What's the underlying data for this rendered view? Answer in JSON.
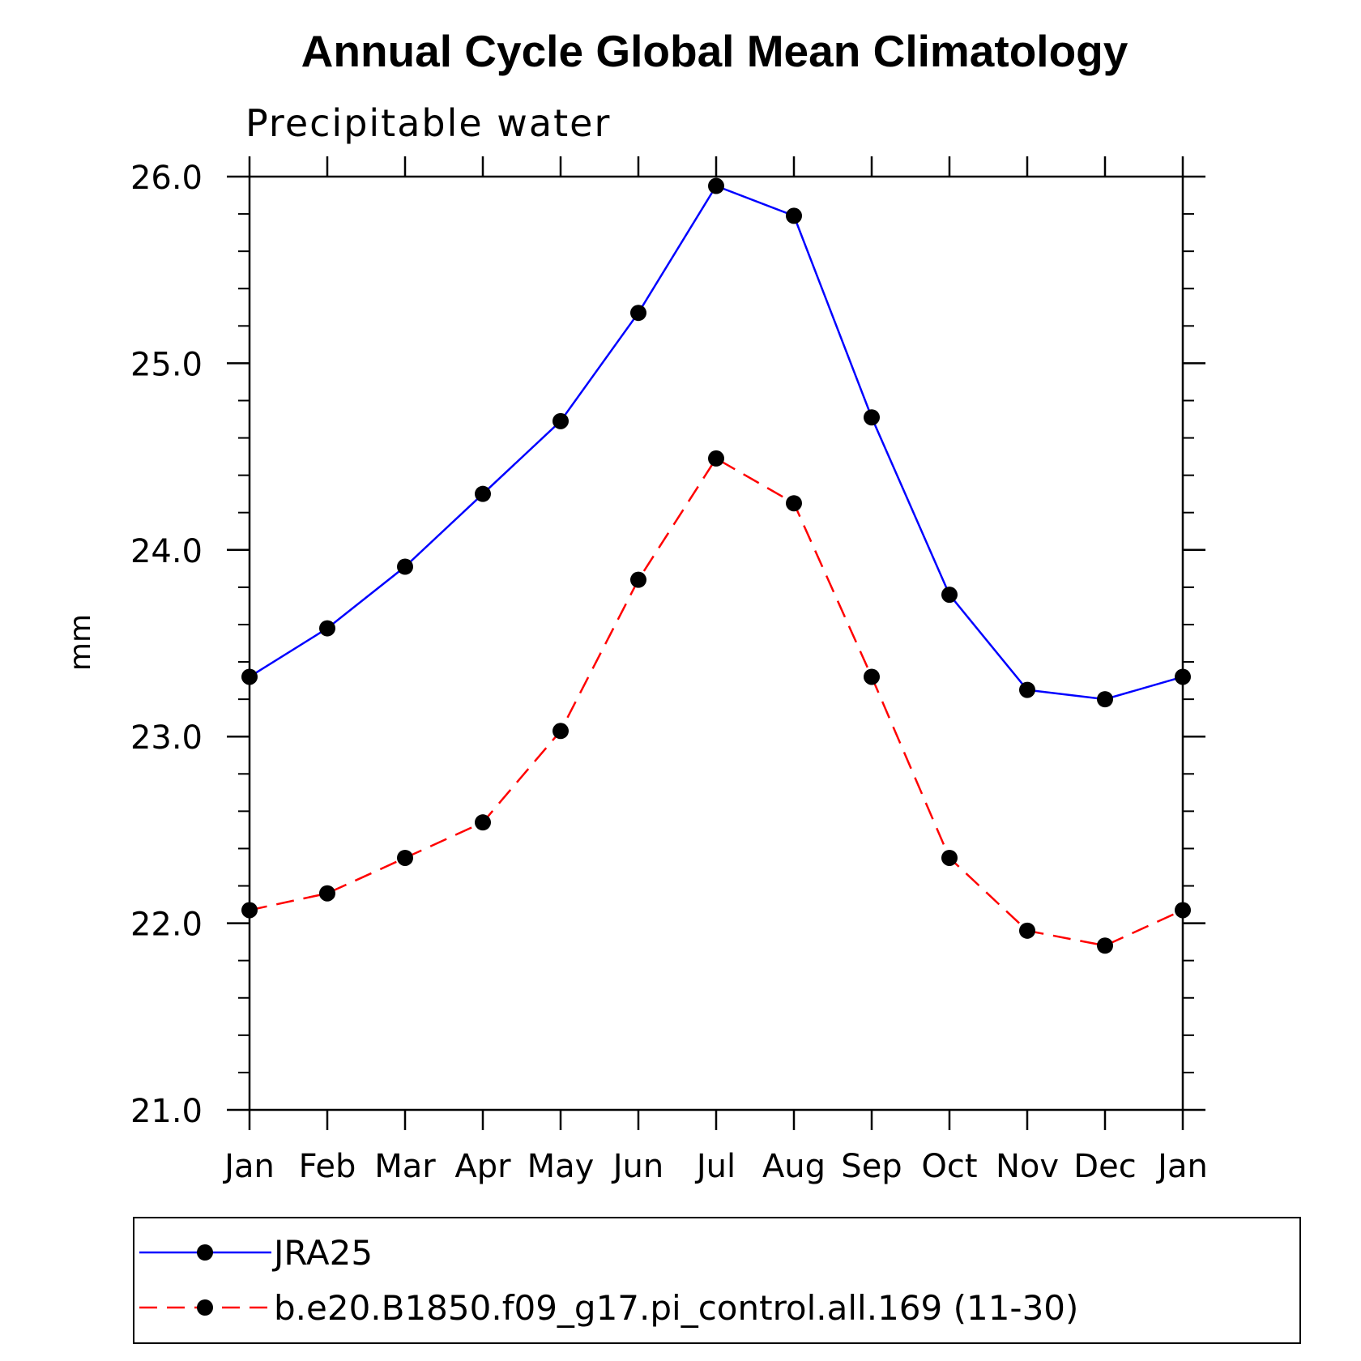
{
  "chart_data": {
    "type": "line",
    "title": "Annual Cycle Global Mean Climatology",
    "subtitle": "Precipitable water",
    "ylabel": "mm",
    "xlabel": "",
    "categories": [
      "Jan",
      "Feb",
      "Mar",
      "Apr",
      "May",
      "Jun",
      "Jul",
      "Aug",
      "Sep",
      "Oct",
      "Nov",
      "Dec",
      "Jan"
    ],
    "ylim": [
      21.0,
      26.0
    ],
    "yticks": [
      "21.0",
      "22.0",
      "23.0",
      "24.0",
      "25.0",
      "26.0"
    ],
    "grid": false,
    "legend_position": "bottom",
    "series": [
      {
        "name": "JRA25",
        "color": "#0000ff",
        "line_style": "solid",
        "marker": "filled-circle",
        "values": [
          23.32,
          23.58,
          23.91,
          24.3,
          24.69,
          25.27,
          25.95,
          25.79,
          24.71,
          23.76,
          23.25,
          23.2,
          23.32
        ]
      },
      {
        "name": "b.e20.B1850.f09_g17.pi_control.all.169 (11-30)",
        "color": "#ff0000",
        "line_style": "dashed",
        "marker": "filled-circle",
        "values": [
          22.07,
          22.16,
          22.35,
          22.54,
          23.03,
          23.84,
          24.49,
          24.25,
          23.32,
          22.35,
          21.96,
          21.88,
          22.07
        ]
      }
    ]
  }
}
